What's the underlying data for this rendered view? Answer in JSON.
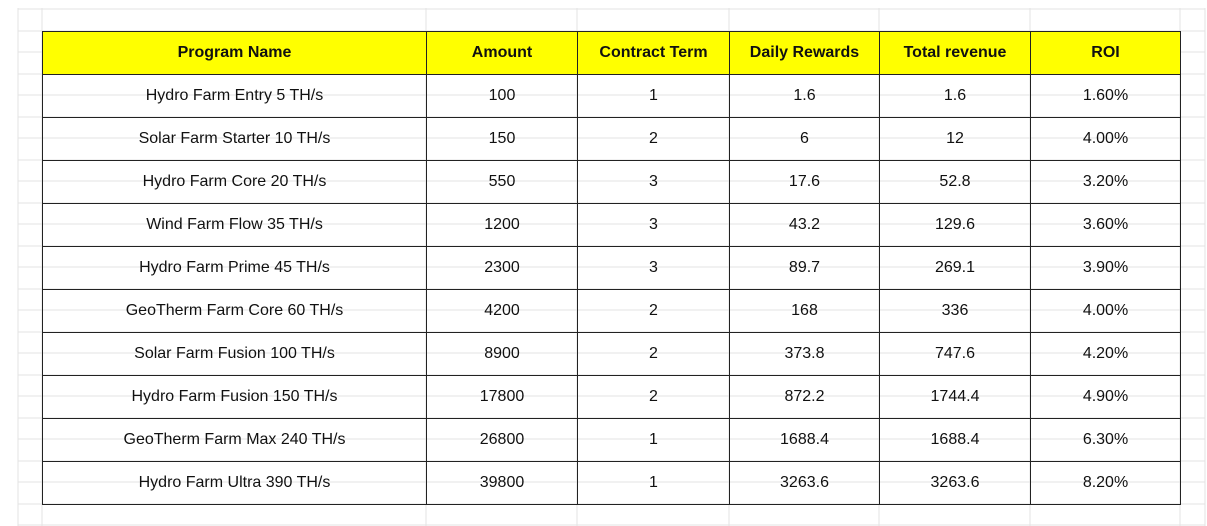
{
  "table": {
    "header": [
      "Program Name",
      "Amount",
      "Contract Term",
      "Daily Rewards",
      "Total revenue",
      "ROI"
    ],
    "rows": [
      [
        "Hydro Farm Entry 5 TH/s",
        "100",
        "1",
        "1.6",
        "1.6",
        "1.60%"
      ],
      [
        "Solar Farm Starter 10 TH/s",
        "150",
        "2",
        "6",
        "12",
        "4.00%"
      ],
      [
        "Hydro Farm Core 20 TH/s",
        "550",
        "3",
        "17.6",
        "52.8",
        "3.20%"
      ],
      [
        "Wind Farm Flow 35 TH/s",
        "1200",
        "3",
        "43.2",
        "129.6",
        "3.60%"
      ],
      [
        "Hydro Farm Prime 45 TH/s",
        "2300",
        "3",
        "89.7",
        "269.1",
        "3.90%"
      ],
      [
        "GeoTherm Farm Core 60 TH/s",
        "4200",
        "2",
        "168",
        "336",
        "4.00%"
      ],
      [
        "Solar Farm Fusion 100 TH/s",
        "8900",
        "2",
        "373.8",
        "747.6",
        "4.20%"
      ],
      [
        "Hydro Farm Fusion 150 TH/s",
        "17800",
        "2",
        "872.2",
        "1744.4",
        "4.90%"
      ],
      [
        "GeoTherm Farm Max 240 TH/s",
        "26800",
        "1",
        "1688.4",
        "1688.4",
        "6.30%"
      ],
      [
        "Hydro Farm Ultra 390 TH/s",
        "39800",
        "1",
        "3263.6",
        "3263.6",
        "8.20%"
      ]
    ]
  }
}
